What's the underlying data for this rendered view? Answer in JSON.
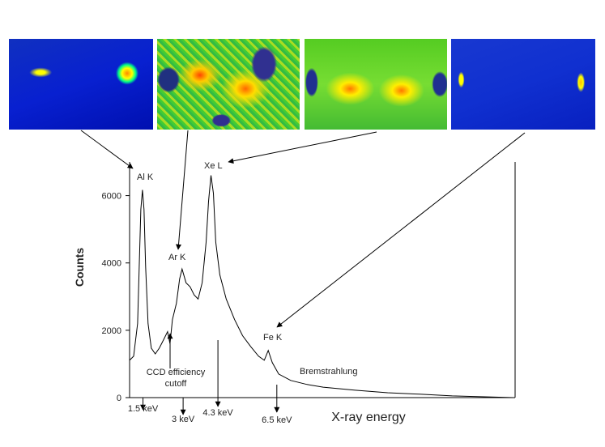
{
  "chart_data": {
    "type": "line",
    "x_label": "X-ray energy",
    "y_label": "Counts",
    "x": [
      1.0,
      1.15,
      1.3,
      1.42,
      1.48,
      1.54,
      1.6,
      1.69,
      1.81,
      1.96,
      2.11,
      2.27,
      2.42,
      2.51,
      2.6,
      2.75,
      2.87,
      2.96,
      3.11,
      3.26,
      3.41,
      3.56,
      3.71,
      3.86,
      3.95,
      4.04,
      4.13,
      4.22,
      4.37,
      4.61,
      4.92,
      5.22,
      5.52,
      5.82,
      6.03,
      6.18,
      6.33,
      6.57,
      7.02,
      7.63,
      8.23,
      9.43,
      10.64,
      11.84,
      13.05,
      14.25,
      15.34
    ],
    "values": [
      1110,
      1230,
      2200,
      5590,
      6170,
      5590,
      3890,
      2200,
      1470,
      1300,
      1470,
      1720,
      1960,
      1600,
      2320,
      2800,
      3530,
      3820,
      3410,
      3290,
      3050,
      2930,
      3410,
      4620,
      5830,
      6600,
      6070,
      4620,
      3650,
      2930,
      2320,
      1840,
      1520,
      1230,
      1110,
      1400,
      1040,
      700,
      510,
      390,
      310,
      220,
      145,
      100,
      50,
      25,
      0
    ],
    "color": "#000000",
    "xlim": [
      1,
      15.4
    ],
    "ylim": [
      0,
      7000
    ],
    "yticks": [
      0,
      2000,
      4000,
      6000
    ],
    "energy_markers": [
      {
        "value": 1.5,
        "label": "1.5 keV"
      },
      {
        "value": 3,
        "label": "3 keV"
      },
      {
        "value": 4.3,
        "label": "4.3 keV"
      },
      {
        "value": 6.5,
        "label": "6.5 keV"
      }
    ],
    "peak_labels": [
      "Al K",
      "Ar K",
      "Xe L",
      "Fe K"
    ],
    "notes": [
      "CCD efficiency",
      "cutoff",
      "Bremstrahlung"
    ]
  }
}
